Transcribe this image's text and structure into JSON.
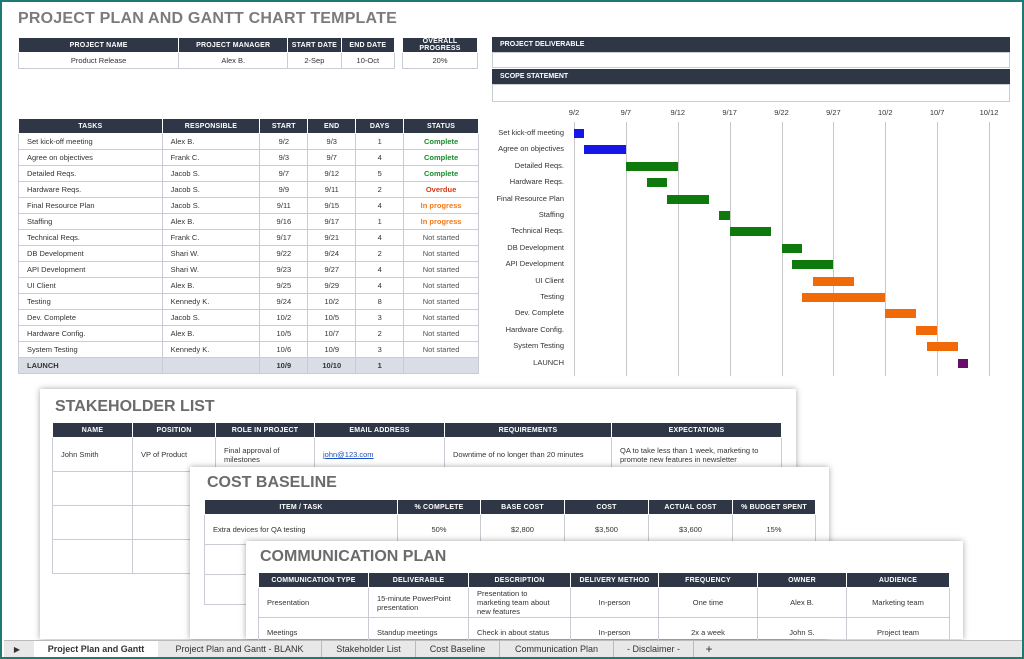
{
  "title": "PROJECT PLAN AND GANTT CHART TEMPLATE",
  "project_table": {
    "headers": [
      "PROJECT NAME",
      "PROJECT MANAGER",
      "START DATE",
      "END DATE"
    ],
    "values": [
      "Product Release",
      "Alex B.",
      "2-Sep",
      "10-Oct"
    ]
  },
  "progress": {
    "header": "OVERALL PROGRESS",
    "value": "20%"
  },
  "deliverable_header": "PROJECT DELIVERABLE",
  "scope_header": "SCOPE STATEMENT",
  "tasks_table": {
    "headers": [
      "TASKS",
      "RESPONSIBLE",
      "START",
      "END",
      "DAYS",
      "STATUS"
    ],
    "rows": [
      {
        "task": "Set kick-off meeting",
        "resp": "Alex B.",
        "start": "9/2",
        "end": "9/3",
        "days": "1",
        "status": "Complete"
      },
      {
        "task": "Agree on objectives",
        "resp": "Frank C.",
        "start": "9/3",
        "end": "9/7",
        "days": "4",
        "status": "Complete"
      },
      {
        "task": "Detailed Reqs.",
        "resp": "Jacob S.",
        "start": "9/7",
        "end": "9/12",
        "days": "5",
        "status": "Complete"
      },
      {
        "task": "Hardware Reqs.",
        "resp": "Jacob S.",
        "start": "9/9",
        "end": "9/11",
        "days": "2",
        "status": "Overdue"
      },
      {
        "task": "Final Resource Plan",
        "resp": "Jacob S.",
        "start": "9/11",
        "end": "9/15",
        "days": "4",
        "status": "In progress"
      },
      {
        "task": "Staffing",
        "resp": "Alex B.",
        "start": "9/16",
        "end": "9/17",
        "days": "1",
        "status": "In progress"
      },
      {
        "task": "Technical Reqs.",
        "resp": "Frank C.",
        "start": "9/17",
        "end": "9/21",
        "days": "4",
        "status": "Not started"
      },
      {
        "task": "DB Development",
        "resp": "Shari W.",
        "start": "9/22",
        "end": "9/24",
        "days": "2",
        "status": "Not started"
      },
      {
        "task": "API Development",
        "resp": "Shari W.",
        "start": "9/23",
        "end": "9/27",
        "days": "4",
        "status": "Not started"
      },
      {
        "task": "UI Client",
        "resp": "Alex B.",
        "start": "9/25",
        "end": "9/29",
        "days": "4",
        "status": "Not started"
      },
      {
        "task": "Testing",
        "resp": "Kennedy K.",
        "start": "9/24",
        "end": "10/2",
        "days": "8",
        "status": "Not started"
      },
      {
        "task": "Dev. Complete",
        "resp": "Jacob S.",
        "start": "10/2",
        "end": "10/5",
        "days": "3",
        "status": "Not started"
      },
      {
        "task": "Hardware Config.",
        "resp": "Alex B.",
        "start": "10/5",
        "end": "10/7",
        "days": "2",
        "status": "Not started"
      },
      {
        "task": "System Testing",
        "resp": "Kennedy K.",
        "start": "10/6",
        "end": "10/9",
        "days": "3",
        "status": "Not started"
      }
    ],
    "launch": {
      "task": "LAUNCH",
      "resp": "",
      "start": "10/9",
      "end": "10/10",
      "days": "1",
      "status": ""
    }
  },
  "chart_data": {
    "type": "gantt",
    "x_ticks": [
      "9/2",
      "9/7",
      "9/12",
      "9/17",
      "9/22",
      "9/27",
      "10/2",
      "10/7",
      "10/12"
    ],
    "x_range_days": [
      0,
      40
    ],
    "tasks": [
      {
        "name": "Set kick-off meeting",
        "start": 0,
        "days": 1,
        "color": "#1616e8"
      },
      {
        "name": "Agree on objectives",
        "start": 1,
        "days": 4,
        "color": "#1616e8"
      },
      {
        "name": "Detailed Reqs.",
        "start": 5,
        "days": 5,
        "color": "#0e7a0e"
      },
      {
        "name": "Hardware Reqs.",
        "start": 7,
        "days": 2,
        "color": "#0e7a0e"
      },
      {
        "name": "Final Resource Plan",
        "start": 9,
        "days": 4,
        "color": "#0e7a0e"
      },
      {
        "name": "Staffing",
        "start": 14,
        "days": 1,
        "color": "#0e7a0e"
      },
      {
        "name": "Technical Reqs.",
        "start": 15,
        "days": 4,
        "color": "#0e7a0e"
      },
      {
        "name": "DB Development",
        "start": 20,
        "days": 2,
        "color": "#0e7a0e"
      },
      {
        "name": "API Development",
        "start": 21,
        "days": 4,
        "color": "#0e7a0e"
      },
      {
        "name": "UI Client",
        "start": 23,
        "days": 4,
        "color": "#f06a0a"
      },
      {
        "name": "Testing",
        "start": 22,
        "days": 8,
        "color": "#f06a0a"
      },
      {
        "name": "Dev. Complete",
        "start": 30,
        "days": 3,
        "color": "#f06a0a"
      },
      {
        "name": "Hardware Config.",
        "start": 33,
        "days": 2,
        "color": "#f06a0a"
      },
      {
        "name": "System Testing",
        "start": 34,
        "days": 3,
        "color": "#f06a0a"
      },
      {
        "name": "LAUNCH",
        "start": 37,
        "days": 1,
        "color": "#6a0a6a"
      }
    ]
  },
  "stakeholder": {
    "title": "STAKEHOLDER LIST",
    "headers": [
      "NAME",
      "POSITION",
      "ROLE IN PROJECT",
      "EMAIL ADDRESS",
      "REQUIREMENTS",
      "EXPECTATIONS"
    ],
    "row": [
      "John Smith",
      "VP of Product",
      "Final approval of milestones",
      "john@123.com",
      "Downtime of no longer than 20 minutes",
      "QA to take less than 1 week, marketing to promote new features in newsletter"
    ]
  },
  "cost": {
    "title": "COST BASELINE",
    "headers": [
      "ITEM / TASK",
      "% COMPLETE",
      "BASE COST",
      "COST",
      "ACTUAL COST",
      "% BUDGET SPENT"
    ],
    "row": [
      "Extra devices for QA testing",
      "50%",
      "$2,800",
      "$3,500",
      "$3,600",
      "15%"
    ]
  },
  "comm": {
    "title": "COMMUNICATION PLAN",
    "headers": [
      "COMMUNICATION TYPE",
      "DELIVERABLE",
      "DESCRIPTION",
      "DELIVERY METHOD",
      "FREQUENCY",
      "OWNER",
      "AUDIENCE"
    ],
    "rows": [
      [
        "Presentation",
        "15-minute PowerPoint presentation",
        "Presentation to marketing team about new features",
        "In-person",
        "One time",
        "Alex B.",
        "Marketing team"
      ],
      [
        "Meetings",
        "Standup meetings",
        "Check in about status",
        "In-person",
        "2x a week",
        "John S.",
        "Project team"
      ]
    ]
  },
  "tabs": [
    "Project Plan and Gantt",
    "Project Plan and Gantt - BLANK",
    "Stakeholder List",
    "Cost Baseline",
    "Communication Plan",
    "- Disclaimer -",
    "+"
  ]
}
